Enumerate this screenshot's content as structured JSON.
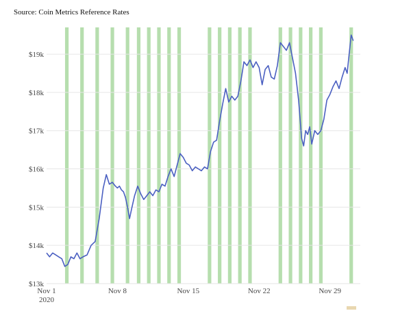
{
  "source_note": "Source: Coin Metrics Reference Rates",
  "colors": {
    "line": "#4a5fc1",
    "bands": "#a9d8a0",
    "grid": "#e6e6e6"
  },
  "chart_data": {
    "type": "line",
    "title": "",
    "xlabel": "",
    "ylabel": "",
    "ylim": [
      13000,
      19700
    ],
    "xlim": [
      0,
      31
    ],
    "y_ticks": [
      13000,
      14000,
      15000,
      16000,
      17000,
      18000,
      19000
    ],
    "y_tick_labels": [
      "$13k",
      "$14k",
      "$15k",
      "$16k",
      "$17k",
      "$18k",
      "$19k"
    ],
    "x_ticks": [
      0,
      7,
      14,
      21,
      28
    ],
    "x_tick_labels": [
      [
        "Nov 1",
        "2020"
      ],
      [
        "Nov 8"
      ],
      [
        "Nov 15"
      ],
      [
        "Nov 22"
      ],
      [
        "Nov 29"
      ]
    ],
    "grid": true,
    "highlight_bands_x": [
      2,
      3.5,
      5,
      6.5,
      8,
      9.1,
      10.1,
      11.1,
      12.1,
      13.1,
      16.1,
      17.1,
      18.1,
      19.1,
      20.1,
      23.1,
      24.1,
      25.1,
      26.1,
      27.1,
      30.1
    ],
    "series": [
      {
        "name": "",
        "x": [
          0,
          0.3,
          0.6,
          0.9,
          1.2,
          1.5,
          1.8,
          2.1,
          2.4,
          2.7,
          3.0,
          3.3,
          3.6,
          4.0,
          4.4,
          4.8,
          5.2,
          5.6,
          5.9,
          6.2,
          6.5,
          6.8,
          7.0,
          7.2,
          7.4,
          7.6,
          7.8,
          8.0,
          8.2,
          8.4,
          8.7,
          9.0,
          9.3,
          9.6,
          9.9,
          10.2,
          10.5,
          10.8,
          11.1,
          11.4,
          11.7,
          12.0,
          12.3,
          12.6,
          12.9,
          13.2,
          13.5,
          13.8,
          14.1,
          14.4,
          14.7,
          15.0,
          15.3,
          15.6,
          15.9,
          16.2,
          16.5,
          16.8,
          17.1,
          17.4,
          17.7,
          18.0,
          18.3,
          18.6,
          18.9,
          19.2,
          19.5,
          19.8,
          20.1,
          20.4,
          20.7,
          21.0,
          21.3,
          21.6,
          21.9,
          22.2,
          22.5,
          22.8,
          23.1,
          23.4,
          23.7,
          24.0,
          24.3,
          24.6,
          24.9,
          25.2,
          25.4,
          25.6,
          25.8,
          26.0,
          26.2,
          26.5,
          26.8,
          27.1,
          27.4,
          27.7,
          28.0,
          28.3,
          28.6,
          28.9,
          29.2,
          29.5,
          29.7,
          29.9,
          30.1,
          30.3
        ],
        "values": [
          13800,
          13700,
          13800,
          13750,
          13700,
          13650,
          13450,
          13500,
          13700,
          13650,
          13800,
          13650,
          13700,
          13750,
          14000,
          14100,
          14700,
          15500,
          15850,
          15600,
          15650,
          15550,
          15500,
          15550,
          15450,
          15400,
          15250,
          15000,
          14700,
          14950,
          15300,
          15550,
          15350,
          15200,
          15300,
          15400,
          15300,
          15450,
          15400,
          15600,
          15550,
          15800,
          16000,
          15800,
          16100,
          16400,
          16300,
          16150,
          16100,
          15950,
          16050,
          16000,
          15950,
          16050,
          16000,
          16450,
          16700,
          16750,
          17250,
          17700,
          18100,
          17750,
          17900,
          17800,
          17900,
          18300,
          18800,
          18700,
          18850,
          18650,
          18800,
          18650,
          18200,
          18600,
          18700,
          18400,
          18350,
          18700,
          19300,
          19200,
          19100,
          19300,
          18900,
          18500,
          17800,
          16800,
          16600,
          17000,
          16900,
          17100,
          16650,
          17000,
          16900,
          17000,
          17300,
          17800,
          17950,
          18150,
          18300,
          18100,
          18400,
          18650,
          18500,
          19000,
          19500,
          19350
        ]
      }
    ]
  }
}
